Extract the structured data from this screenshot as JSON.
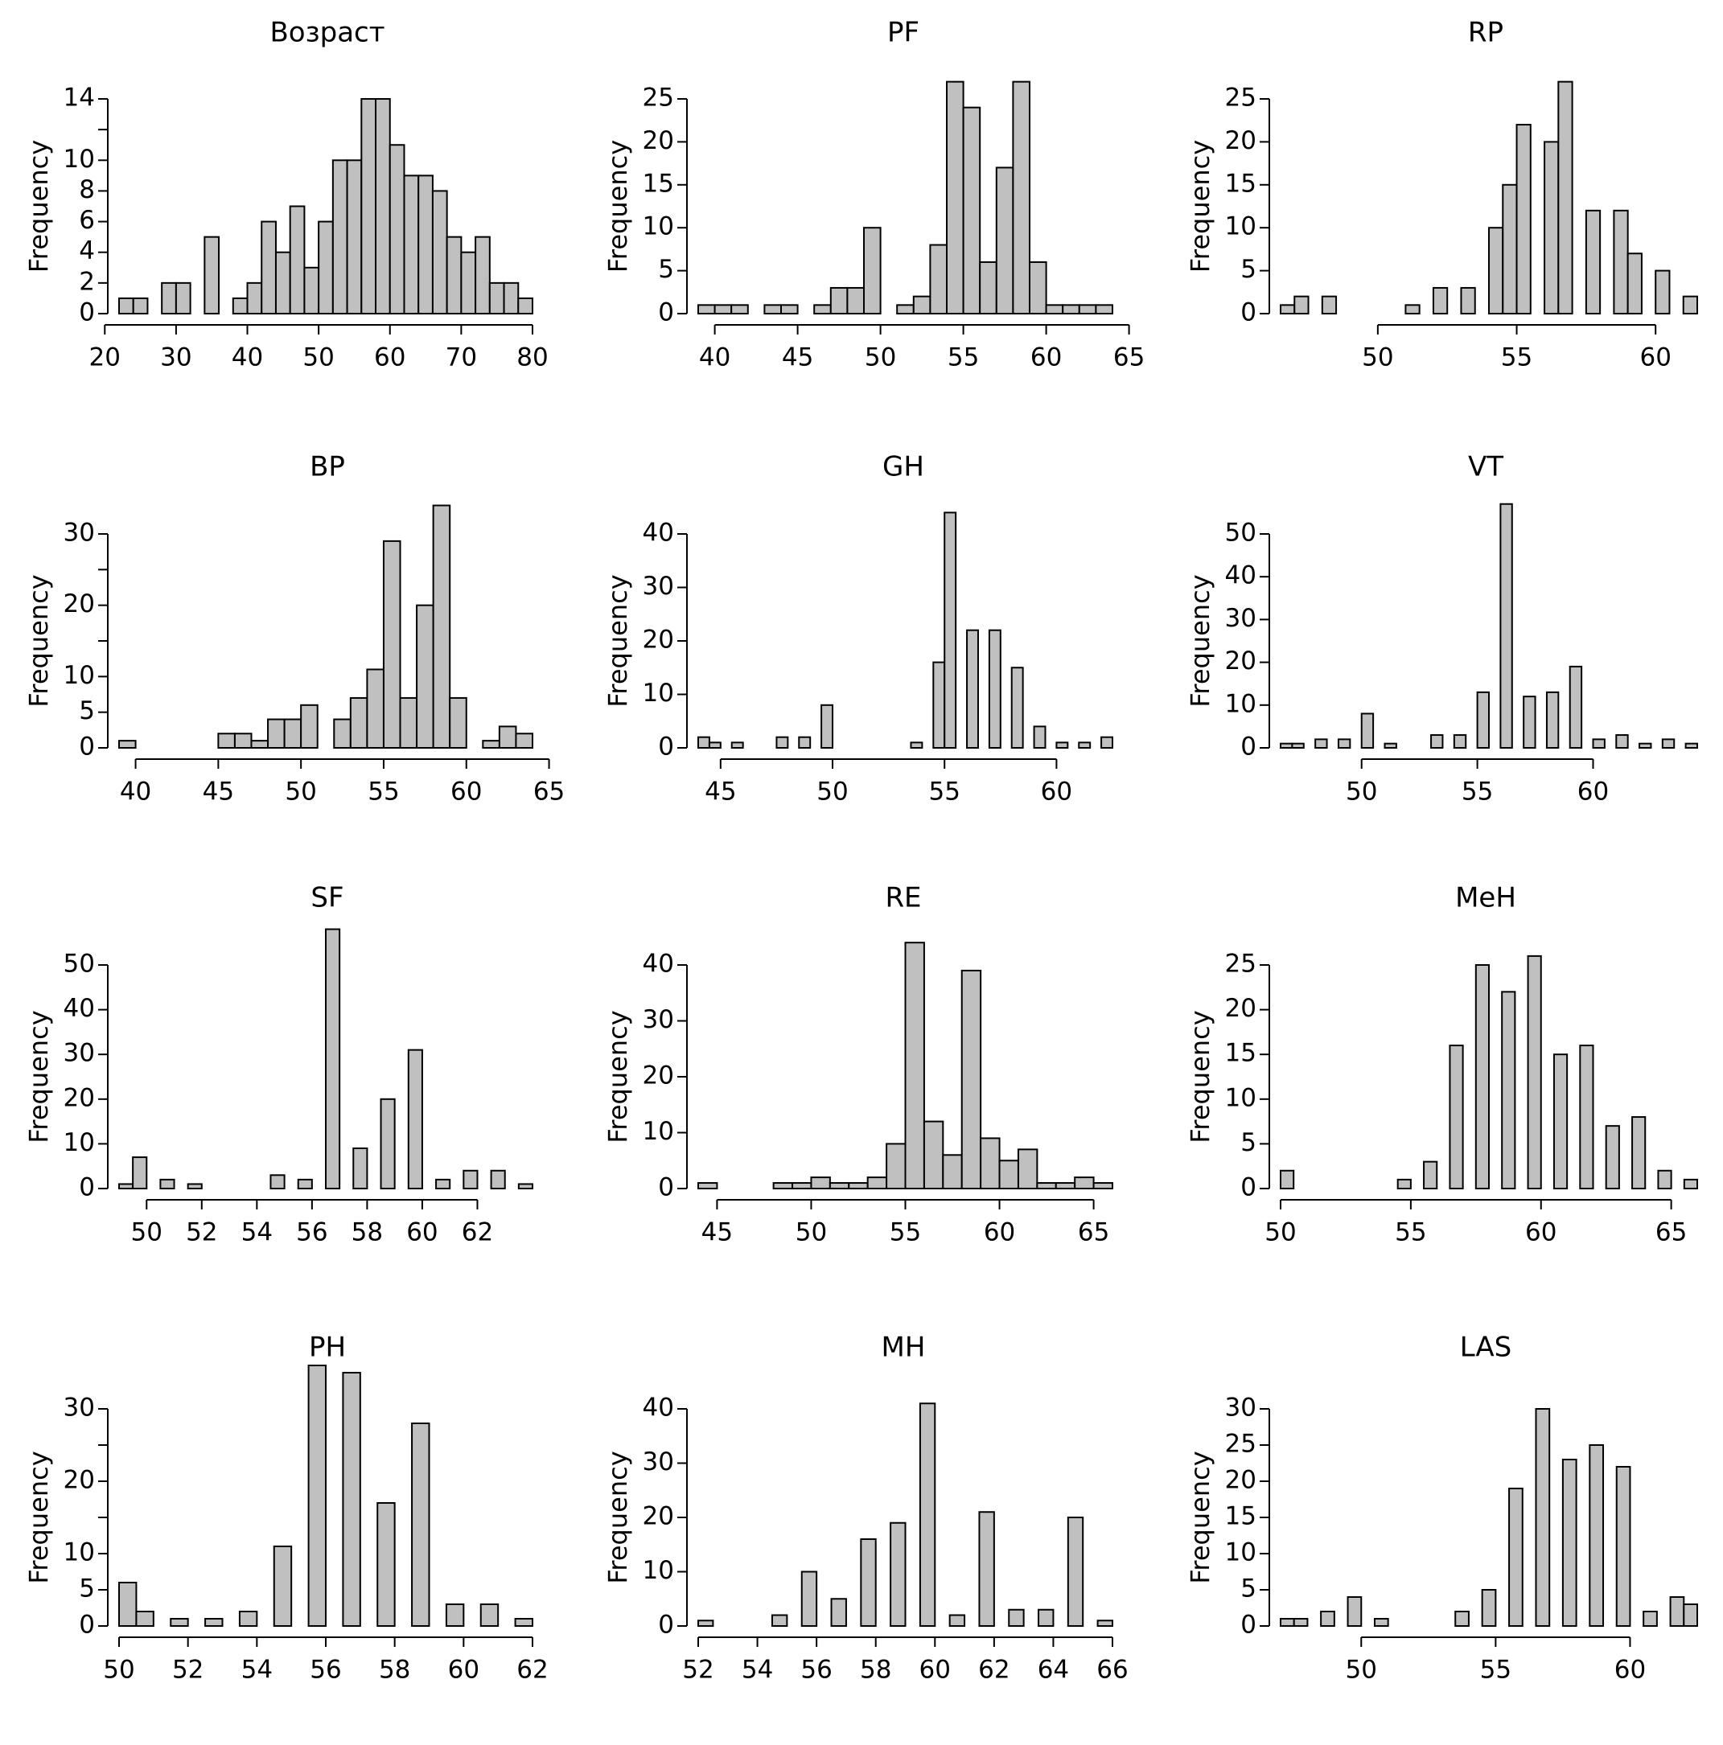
{
  "colors": {
    "bar_fill": "#c0c0c0",
    "bar_stroke": "#000000"
  },
  "chart_data": [
    {
      "type": "bar",
      "title": "Возраст",
      "xlabel": "",
      "ylabel": "Frequency",
      "bin_width": 2,
      "x_start": 22,
      "values": [
        1,
        1,
        0,
        2,
        2,
        0,
        5,
        0,
        1,
        2,
        6,
        4,
        7,
        3,
        6,
        10,
        10,
        14,
        14,
        11,
        9,
        9,
        8,
        5,
        4,
        5,
        2,
        2,
        1
      ],
      "xlim": [
        20,
        80
      ],
      "xticks": [
        20,
        30,
        40,
        50,
        60,
        70,
        80
      ],
      "ylim": [
        0,
        14
      ],
      "yticks": [
        0,
        2,
        4,
        6,
        8,
        10,
        14
      ],
      "yminor": [
        12
      ]
    },
    {
      "type": "bar",
      "title": "PF",
      "xlabel": "",
      "ylabel": "Frequency",
      "bin_width": 1,
      "x_start": 39,
      "values": [
        1,
        1,
        1,
        0,
        1,
        1,
        0,
        1,
        3,
        3,
        10,
        0,
        1,
        2,
        8,
        27,
        24,
        6,
        17,
        27,
        6,
        1,
        1,
        1,
        1
      ],
      "xlim": [
        40,
        65
      ],
      "xticks": [
        40,
        45,
        50,
        55,
        60,
        65
      ],
      "ylim": [
        0,
        25
      ],
      "yticks": [
        0,
        5,
        10,
        15,
        20,
        25
      ],
      "yminor": []
    },
    {
      "type": "bar",
      "title": "RP",
      "xlabel": "",
      "ylabel": "Frequency",
      "bin_width": 0.5,
      "x_start": 46.5,
      "values": [
        1,
        2,
        0,
        2,
        0,
        0,
        0,
        0,
        0,
        1,
        0,
        3,
        0,
        3,
        0,
        10,
        15,
        22,
        0,
        20,
        27,
        0,
        12,
        0,
        12,
        7,
        0,
        5,
        0,
        2
      ],
      "xlim": [
        50,
        60
      ],
      "xticks": [
        50,
        55,
        60
      ],
      "ylim": [
        0,
        25
      ],
      "yticks": [
        0,
        5,
        10,
        15,
        20,
        25
      ],
      "yminor": []
    },
    {
      "type": "bar",
      "title": "BP",
      "xlabel": "",
      "ylabel": "Frequency",
      "bin_width": 1,
      "x_start": 39,
      "values": [
        1,
        0,
        0,
        0,
        0,
        0,
        2,
        2,
        1,
        4,
        4,
        6,
        0,
        4,
        7,
        11,
        29,
        7,
        20,
        34,
        7,
        0,
        1,
        3,
        2
      ],
      "xlim": [
        40,
        65
      ],
      "xticks": [
        40,
        45,
        50,
        55,
        60,
        65
      ],
      "ylim": [
        0,
        30
      ],
      "yticks": [
        0,
        5,
        10,
        20,
        30
      ],
      "yminor": [
        25,
        15
      ]
    },
    {
      "type": "bar",
      "title": "GH",
      "xlabel": "",
      "ylabel": "Frequency",
      "bin_width": 0.5,
      "x_start": 44,
      "values": [
        2,
        1,
        0,
        1,
        0,
        0,
        0,
        2,
        0,
        2,
        0,
        8,
        0,
        0,
        0,
        0,
        0,
        0,
        0,
        1,
        0,
        16,
        44,
        0,
        22,
        0,
        22,
        0,
        15,
        0,
        4,
        0,
        1,
        0,
        1,
        0,
        2
      ],
      "xlim": [
        45,
        60
      ],
      "xticks": [
        45,
        50,
        55,
        60
      ],
      "ylim": [
        0,
        40
      ],
      "yticks": [
        0,
        10,
        20,
        30,
        40
      ],
      "yminor": []
    },
    {
      "type": "bar",
      "title": "VT",
      "xlabel": "",
      "ylabel": "Frequency",
      "bin_width": 0.5,
      "x_start": 46.5,
      "values": [
        1,
        1,
        0,
        2,
        0,
        2,
        0,
        8,
        0,
        1,
        0,
        0,
        0,
        3,
        0,
        3,
        0,
        13,
        0,
        57,
        0,
        12,
        0,
        13,
        0,
        19,
        0,
        2,
        0,
        3,
        0,
        1,
        0,
        2,
        0,
        1
      ],
      "xlim": [
        50,
        60
      ],
      "xticks": [
        50,
        55,
        60
      ],
      "ylim": [
        0,
        50
      ],
      "yticks": [
        0,
        10,
        20,
        30,
        40,
        50
      ],
      "yminor": []
    },
    {
      "type": "bar",
      "title": "SF",
      "xlabel": "",
      "ylabel": "Frequency",
      "bin_width": 0.5,
      "x_start": 49,
      "values": [
        1,
        7,
        0,
        2,
        0,
        1,
        0,
        0,
        0,
        0,
        0,
        3,
        0,
        2,
        0,
        58,
        0,
        9,
        0,
        20,
        0,
        31,
        0,
        2,
        0,
        4,
        0,
        4,
        0,
        1
      ],
      "xlim": [
        50,
        62
      ],
      "xticks": [
        50,
        52,
        54,
        56,
        58,
        60,
        62
      ],
      "ylim": [
        0,
        50
      ],
      "yticks": [
        0,
        10,
        20,
        30,
        40,
        50
      ],
      "yminor": []
    },
    {
      "type": "bar",
      "title": "RE",
      "xlabel": "",
      "ylabel": "Frequency",
      "bin_width": 1,
      "x_start": 44,
      "values": [
        1,
        0,
        0,
        0,
        1,
        1,
        2,
        1,
        1,
        2,
        8,
        44,
        12,
        6,
        39,
        9,
        5,
        7,
        1,
        1,
        2,
        1
      ],
      "xlim": [
        45,
        65
      ],
      "xticks": [
        45,
        50,
        55,
        60,
        65
      ],
      "ylim": [
        0,
        40
      ],
      "yticks": [
        0,
        10,
        20,
        30,
        40
      ],
      "yminor": []
    },
    {
      "type": "bar",
      "title": "MeH",
      "xlabel": "",
      "ylabel": "Frequency",
      "bin_width": 0.5,
      "x_start": 50,
      "values": [
        2,
        0,
        0,
        0,
        0,
        0,
        0,
        0,
        0,
        1,
        0,
        3,
        0,
        16,
        0,
        25,
        0,
        22,
        0,
        26,
        0,
        15,
        0,
        16,
        0,
        7,
        0,
        8,
        0,
        2,
        0,
        1
      ],
      "xlim": [
        50,
        65
      ],
      "xticks": [
        50,
        55,
        60,
        65
      ],
      "ylim": [
        0,
        25
      ],
      "yticks": [
        0,
        5,
        10,
        15,
        20,
        25
      ],
      "yminor": []
    },
    {
      "type": "bar",
      "title": "PH",
      "xlabel": "",
      "ylabel": "Frequency",
      "bin_width": 0.5,
      "x_start": 50,
      "values": [
        6,
        2,
        0,
        1,
        0,
        1,
        0,
        2,
        0,
        11,
        0,
        36,
        0,
        35,
        0,
        17,
        0,
        28,
        0,
        3,
        0,
        3,
        0,
        1
      ],
      "xlim": [
        50,
        62
      ],
      "xticks": [
        50,
        52,
        54,
        56,
        58,
        60,
        62
      ],
      "ylim": [
        0,
        30
      ],
      "yticks": [
        0,
        5,
        10,
        20,
        30
      ],
      "yminor": [
        25,
        15
      ]
    },
    {
      "type": "bar",
      "title": "MH",
      "xlabel": "",
      "ylabel": "Frequency",
      "bin_width": 0.5,
      "x_start": 52,
      "values": [
        1,
        0,
        0,
        0,
        0,
        2,
        0,
        10,
        0,
        5,
        0,
        16,
        0,
        19,
        0,
        41,
        0,
        2,
        0,
        21,
        0,
        3,
        0,
        3,
        0,
        20,
        0,
        1
      ],
      "xlim": [
        52,
        66
      ],
      "xticks": [
        52,
        54,
        56,
        58,
        60,
        62,
        64,
        66
      ],
      "ylim": [
        0,
        40
      ],
      "yticks": [
        0,
        10,
        20,
        30,
        40
      ],
      "yminor": []
    },
    {
      "type": "bar",
      "title": "LAS",
      "xlabel": "",
      "ylabel": "Frequency",
      "bin_width": 0.5,
      "x_start": 47,
      "values": [
        1,
        1,
        0,
        2,
        0,
        4,
        0,
        1,
        0,
        0,
        0,
        0,
        0,
        2,
        0,
        5,
        0,
        19,
        0,
        30,
        0,
        23,
        0,
        25,
        0,
        22,
        0,
        2,
        0,
        4,
        3
      ],
      "xlim": [
        50,
        60
      ],
      "xticks": [
        50,
        55,
        60
      ],
      "ylim": [
        0,
        30
      ],
      "yticks": [
        0,
        5,
        10,
        15,
        20,
        25,
        30
      ],
      "yminor": []
    }
  ]
}
